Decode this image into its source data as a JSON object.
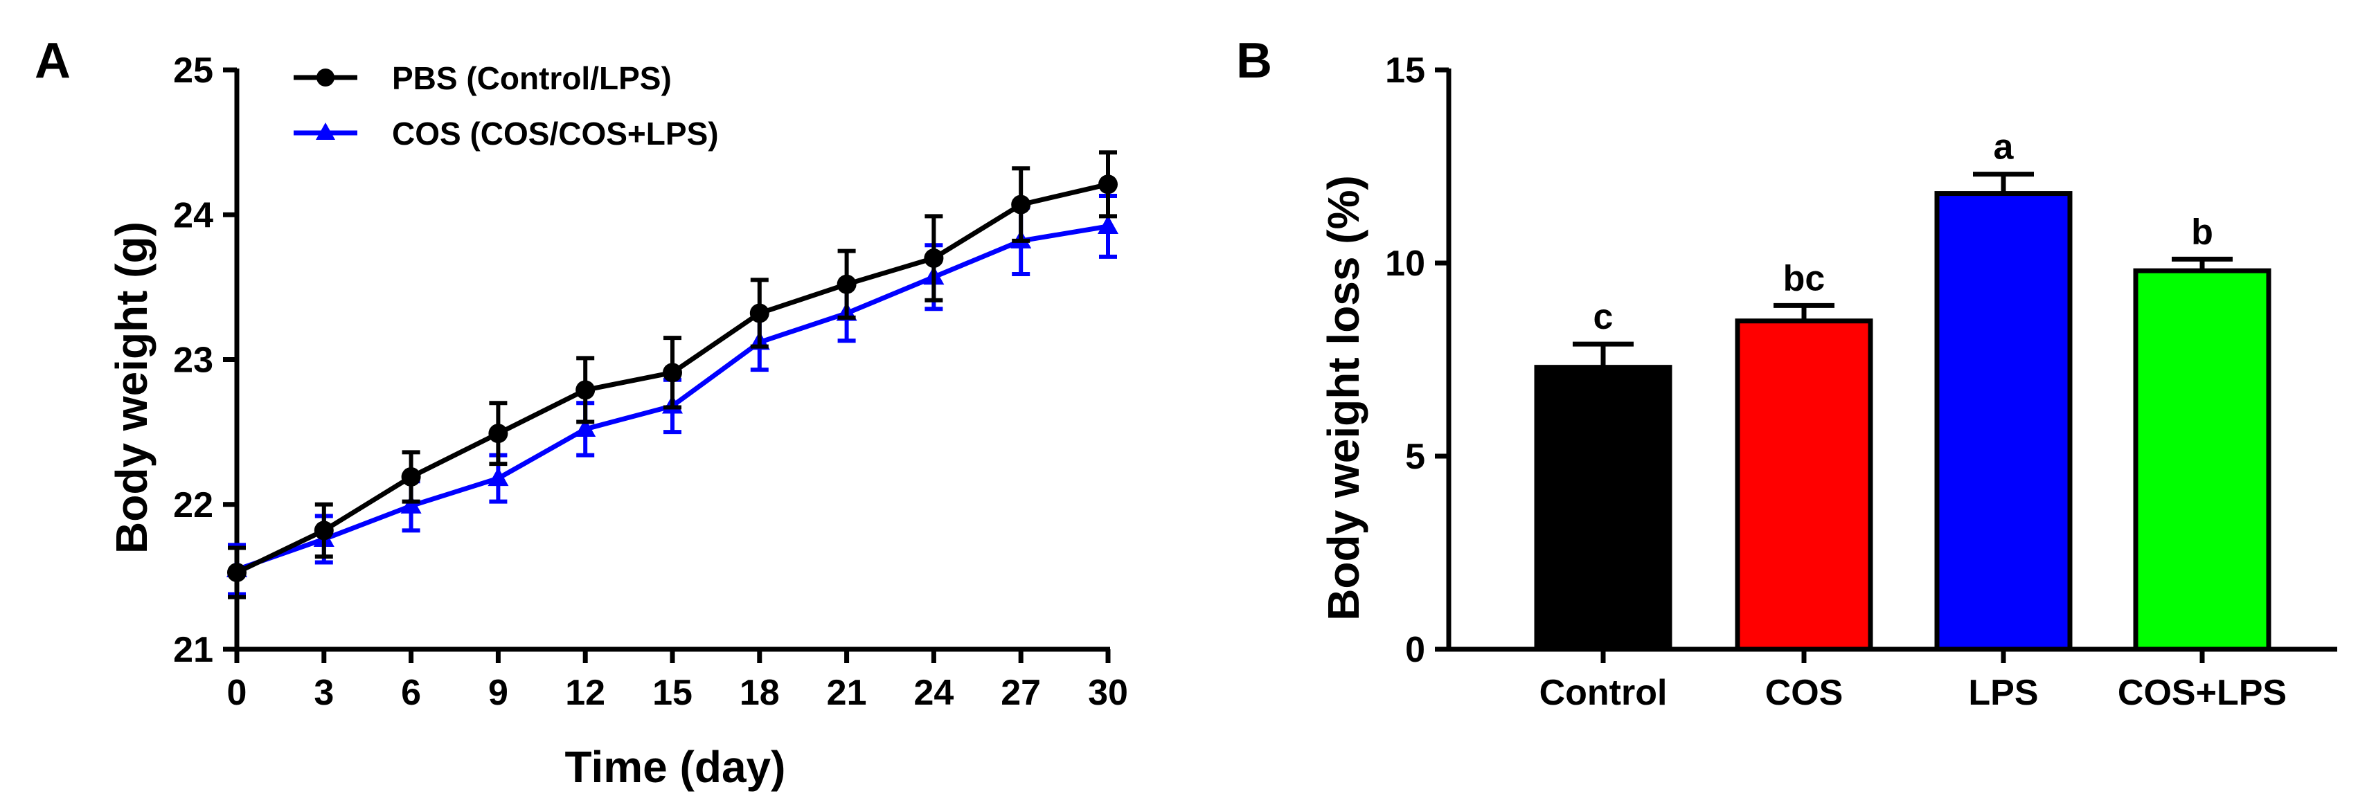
{
  "chart_data": [
    {
      "panel": "A",
      "type": "line",
      "xlabel": "Time (day)",
      "ylabel": "Body weight (g)",
      "xlim": [
        0,
        30
      ],
      "ylim": [
        21,
        25
      ],
      "xticks": [
        "0",
        "3",
        "6",
        "9",
        "12",
        "15",
        "18",
        "21",
        "24",
        "27",
        "30"
      ],
      "yticks": [
        "21",
        "22",
        "23",
        "24",
        "25"
      ],
      "x": [
        0,
        3,
        6,
        9,
        12,
        15,
        18,
        21,
        24,
        27,
        30
      ],
      "series": [
        {
          "name": "PBS (Control/LPS)",
          "color": "#000000",
          "marker": "circle",
          "values": [
            21.53,
            21.82,
            22.19,
            22.49,
            22.79,
            22.91,
            23.32,
            23.52,
            23.7,
            24.07,
            24.21
          ],
          "errors": [
            0.17,
            0.18,
            0.17,
            0.21,
            0.22,
            0.24,
            0.23,
            0.23,
            0.29,
            0.25,
            0.22
          ]
        },
        {
          "name": "COS (COS/COS+LPS)",
          "color": "#0000ff",
          "marker": "triangle",
          "values": [
            21.55,
            21.76,
            21.99,
            22.18,
            22.52,
            22.68,
            23.12,
            23.32,
            23.57,
            23.82,
            23.92
          ],
          "errors": [
            0.17,
            0.16,
            0.17,
            0.16,
            0.18,
            0.18,
            0.19,
            0.19,
            0.22,
            0.23,
            0.21
          ]
        }
      ]
    },
    {
      "panel": "B",
      "type": "bar",
      "xlabel": "",
      "ylabel": "Body weight loss (%)",
      "ylim": [
        0,
        15
      ],
      "yticks": [
        "0",
        "5",
        "10",
        "15"
      ],
      "categories": [
        "Control",
        "COS",
        "LPS",
        "COS+LPS"
      ],
      "values": [
        7.3,
        8.5,
        11.8,
        9.8
      ],
      "errors": [
        0.6,
        0.4,
        0.5,
        0.3
      ],
      "colors": [
        "#000000",
        "#ff0000",
        "#0000ff",
        "#00ff00"
      ],
      "significance": [
        "c",
        "bc",
        "a",
        "b"
      ]
    }
  ]
}
